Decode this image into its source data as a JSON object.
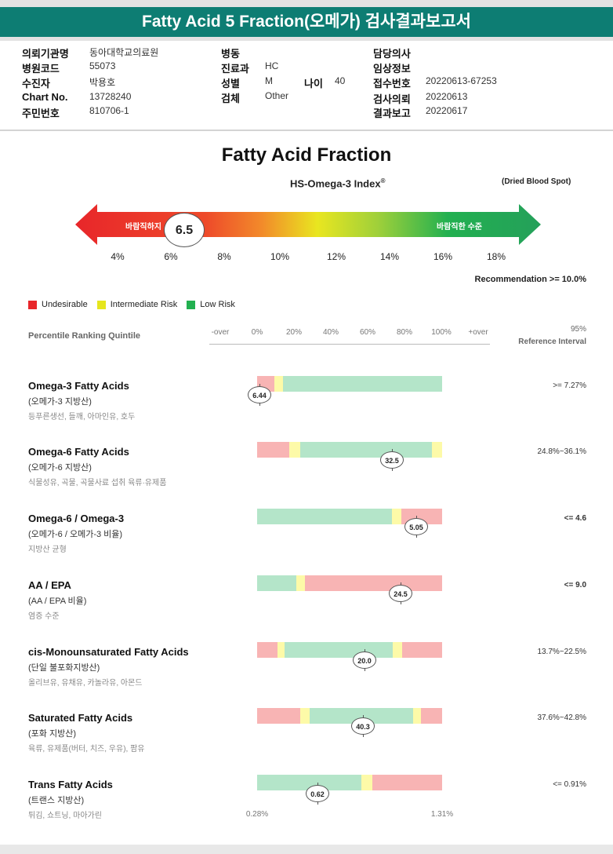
{
  "header": {
    "title": "Fatty Acid 5 Fraction(오메가) 검사결과보고서"
  },
  "info": {
    "institution_label": "의뢰기관명",
    "institution_value": "동아대학교의료원",
    "hospital_code_label": "병원코드",
    "hospital_code_value": "55073",
    "patient_label": "수진자",
    "patient_value": "박용호",
    "chart_label": "Chart No.",
    "chart_value": "13728240",
    "resident_label": "주민번호",
    "resident_value": "810706-1",
    "ward_label": "병동",
    "dept_label": "진료과",
    "dept_value": "HC",
    "sex_label": "성별",
    "sex_value": "M",
    "age_label": "나이",
    "age_value": "40",
    "specimen_label": "검체",
    "specimen_value": "Other",
    "doctor_label": "담당의사",
    "clinical_label": "임상정보",
    "receipt_label": "접수번호",
    "receipt_value": "20220613-67253",
    "request_label": "검사의뢰",
    "request_value": "20220613",
    "report_label": "결과보고",
    "report_value": "20220617"
  },
  "omega_index": {
    "section_title": "Fatty Acid Fraction",
    "index_title": "HS-Omega-3 Index",
    "index_mark": "®",
    "specimen_note": "(Dried Blood Spot)",
    "left_text": "바람직하지",
    "right_text": "바람직한 수준",
    "value": "6.5",
    "scale": [
      "4%",
      "6%",
      "8%",
      "10%",
      "12%",
      "14%",
      "16%",
      "18%"
    ],
    "recommendation": "Recommendation  >= 10.0%"
  },
  "legend": [
    {
      "label": "Undesirable",
      "color": "#e8262a"
    },
    {
      "label": "Intermediate Risk",
      "color": "#e6e61e"
    },
    {
      "label": "Low Risk",
      "color": "#22b050"
    }
  ],
  "percentile": {
    "title": "Percentile Ranking Quintile",
    "labels": [
      "-over",
      "0%",
      "20%",
      "40%",
      "60%",
      "80%",
      "100%",
      "+over"
    ],
    "ref_head1": "95%",
    "ref_head2": "Reference Interval"
  },
  "rows": [
    {
      "name": "Omega-3 Fatty Acids",
      "kor": "(오메가-3 지방산)",
      "desc": "등푸른생선, 들깨, 아마인유, 호두",
      "ref": ">= 7.27%",
      "ref_bold": false,
      "value": "6.44"
    },
    {
      "name": "Omega-6 Fatty Acids",
      "kor": "(오메가-6 지방산)",
      "desc": "식물성유, 곡물, 곡물사료 섭취 육류·유제품",
      "ref": "24.8%~36.1%",
      "ref_bold": false,
      "value": "32.5"
    },
    {
      "name": "Omega-6 / Omega-3",
      "kor": "(오메가-6 / 오메가-3 비율)",
      "desc": "지방산 균형",
      "ref": "<= 4.6",
      "ref_bold": true,
      "value": "5.05"
    },
    {
      "name": "AA / EPA",
      "kor": "(AA / EPA 비율)",
      "desc": "염증 수준",
      "ref": "<= 9.0",
      "ref_bold": true,
      "value": "24.5"
    },
    {
      "name": "cis-Monounsaturated Fatty Acids",
      "kor": "(단일 불포화지방산)",
      "desc": "올리브유, 유채유, 카놀라유, 아몬드",
      "ref": "13.7%~22.5%",
      "ref_bold": false,
      "value": "20.0"
    },
    {
      "name": "Saturated Fatty Acids",
      "kor": "(포화 지방산)",
      "desc": "육류, 유제품(버터, 치즈, 우유), 팜유",
      "ref": "37.6%~42.8%",
      "ref_bold": false,
      "value": "40.3"
    },
    {
      "name": "Trans Fatty Acids",
      "kor": "(트랜스 지방산)",
      "desc": "튀김, 쇼트닝, 마아가린",
      "ref": "<= 0.91%",
      "ref_bold": false,
      "value": "0.62"
    }
  ],
  "bottom_scale": {
    "left": "0.28%",
    "right": "1.31%"
  },
  "colors": {
    "header": "#0d7d73",
    "red": "#f8b4b4",
    "yellow": "#fdfaa8",
    "green": "#b4e5c9"
  }
}
